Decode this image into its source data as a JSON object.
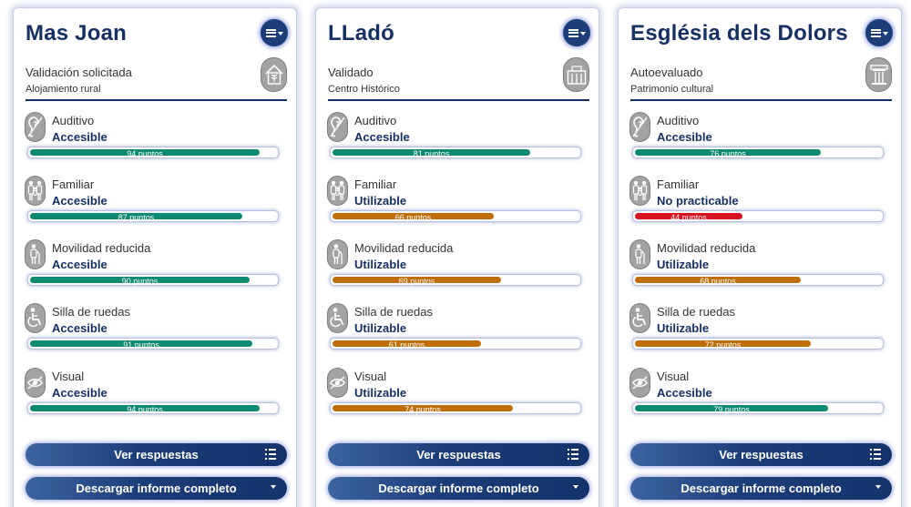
{
  "colors": {
    "accesible": "#0f8a72",
    "utilizable": "#c06e09",
    "no_practicable": "#d8121f",
    "title": "#163063"
  },
  "actions": {
    "ver_respuestas": "Ver respuestas",
    "descargar_informe": "Descargar informe completo"
  },
  "icons": {
    "menu": "hamburger-dropdown-icon",
    "ver_respuestas": "list-icon",
    "descargar": "caret-down-icon",
    "metrics": [
      "ear-icon",
      "family-icon",
      "reduced-mobility-icon",
      "wheelchair-icon",
      "eye-icon"
    ]
  },
  "cards": [
    {
      "title": "Mas Joan",
      "status": "Validación solicitada",
      "category": "Alojamiento rural",
      "category_icon": "rural-house-icon",
      "metrics": [
        {
          "name": "Auditivo",
          "level": "Accesible",
          "score": 94,
          "score_label": "94 puntos",
          "color": "accesible"
        },
        {
          "name": "Familiar",
          "level": "Accesible",
          "score": 87,
          "score_label": "87 puntos",
          "color": "accesible"
        },
        {
          "name": "Movilidad reducida",
          "level": "Accesible",
          "score": 90,
          "score_label": "90 puntos",
          "color": "accesible"
        },
        {
          "name": "Silla de ruedas",
          "level": "Accesible",
          "score": 91,
          "score_label": "91 puntos",
          "color": "accesible"
        },
        {
          "name": "Visual",
          "level": "Accesible",
          "score": 94,
          "score_label": "94 puntos",
          "color": "accesible"
        }
      ]
    },
    {
      "title": "LLadó",
      "status": "Validado",
      "category": "Centro Histórico",
      "category_icon": "historic-building-icon",
      "metrics": [
        {
          "name": "Auditivo",
          "level": "Accesible",
          "score": 81,
          "score_label": "81 puntos",
          "color": "accesible"
        },
        {
          "name": "Familiar",
          "level": "Utilizable",
          "score": 66,
          "score_label": "66 puntos",
          "color": "utilizable"
        },
        {
          "name": "Movilidad reducida",
          "level": "Utilizable",
          "score": 69,
          "score_label": "69 puntos",
          "color": "utilizable"
        },
        {
          "name": "Silla de ruedas",
          "level": "Utilizable",
          "score": 61,
          "score_label": "61 puntos",
          "color": "utilizable"
        },
        {
          "name": "Visual",
          "level": "Utilizable",
          "score": 74,
          "score_label": "74 puntos",
          "color": "utilizable"
        }
      ]
    },
    {
      "title": "Església dels Dolors",
      "status": "Autoevaluado",
      "category": "Patrimonio cultural",
      "category_icon": "column-heritage-icon",
      "metrics": [
        {
          "name": "Auditivo",
          "level": "Accesible",
          "score": 76,
          "score_label": "76 puntos",
          "color": "accesible"
        },
        {
          "name": "Familiar",
          "level": "No practicable",
          "score": 44,
          "score_label": "44 puntos",
          "color": "no_practicable"
        },
        {
          "name": "Movilidad reducida",
          "level": "Utilizable",
          "score": 68,
          "score_label": "68 puntos",
          "color": "utilizable"
        },
        {
          "name": "Silla de ruedas",
          "level": "Utilizable",
          "score": 72,
          "score_label": "72 puntos",
          "color": "utilizable"
        },
        {
          "name": "Visual",
          "level": "Accesible",
          "score": 79,
          "score_label": "79 puntos",
          "color": "accesible"
        }
      ]
    }
  ]
}
